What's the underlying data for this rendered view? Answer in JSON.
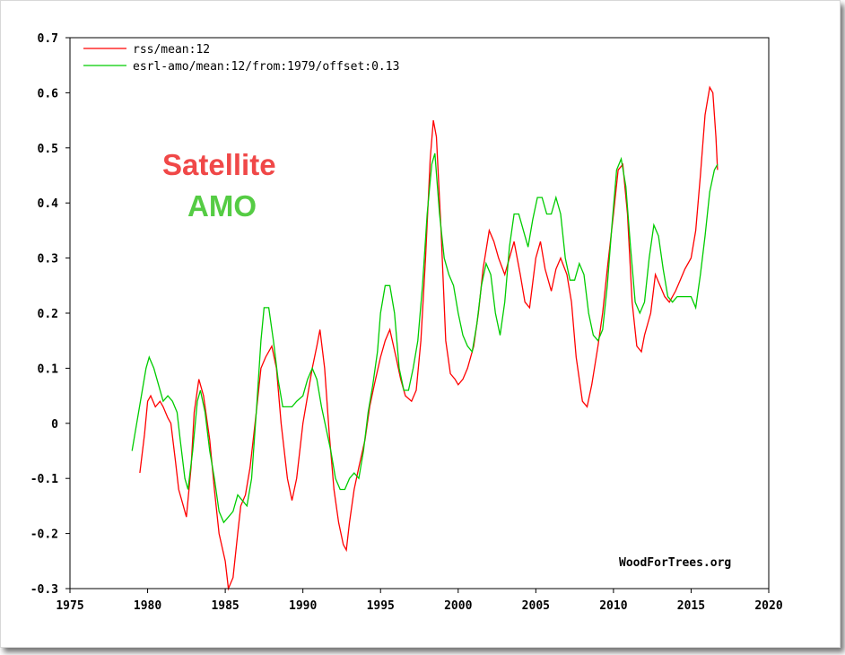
{
  "chart_data": {
    "type": "line",
    "title": "",
    "xlabel": "",
    "ylabel": "",
    "xlim": [
      1975,
      2020
    ],
    "ylim": [
      -0.3,
      0.7
    ],
    "xticks": [
      1975,
      1980,
      1985,
      1990,
      1995,
      2000,
      2005,
      2010,
      2015,
      2020
    ],
    "yticks": [
      -0.3,
      -0.2,
      -0.1,
      0,
      0.1,
      0.2,
      0.3,
      0.4,
      0.5,
      0.6,
      0.7
    ],
    "xtick_labels": [
      "1975",
      "1980",
      "1985",
      "1990",
      "1995",
      "2000",
      "2005",
      "2010",
      "2015",
      "2020"
    ],
    "ytick_labels": [
      "-0.3",
      "-0.2",
      "-0.1",
      "0",
      "0.1",
      "0.2",
      "0.3",
      "0.4",
      "0.5",
      "0.6",
      "0.7"
    ],
    "grid": false,
    "legend_position": "top-left",
    "series": [
      {
        "name": "rss/mean:12",
        "color": "#ff0000",
        "points": [
          [
            1979.5,
            -0.09
          ],
          [
            1979.8,
            -0.02
          ],
          [
            1980.0,
            0.04
          ],
          [
            1980.2,
            0.05
          ],
          [
            1980.5,
            0.03
          ],
          [
            1980.8,
            0.04
          ],
          [
            1981.0,
            0.03
          ],
          [
            1981.3,
            0.01
          ],
          [
            1981.5,
            0.0
          ],
          [
            1981.8,
            -0.07
          ],
          [
            1982.0,
            -0.12
          ],
          [
            1982.3,
            -0.15
          ],
          [
            1982.5,
            -0.17
          ],
          [
            1982.8,
            -0.08
          ],
          [
            1983.0,
            0.02
          ],
          [
            1983.3,
            0.08
          ],
          [
            1983.6,
            0.05
          ],
          [
            1984.0,
            -0.03
          ],
          [
            1984.3,
            -0.12
          ],
          [
            1984.6,
            -0.2
          ],
          [
            1985.0,
            -0.25
          ],
          [
            1985.2,
            -0.3
          ],
          [
            1985.5,
            -0.28
          ],
          [
            1985.8,
            -0.2
          ],
          [
            1986.0,
            -0.15
          ],
          [
            1986.3,
            -0.13
          ],
          [
            1986.6,
            -0.08
          ],
          [
            1987.0,
            0.02
          ],
          [
            1987.3,
            0.1
          ],
          [
            1987.6,
            0.12
          ],
          [
            1988.0,
            0.14
          ],
          [
            1988.3,
            0.1
          ],
          [
            1988.6,
            0.0
          ],
          [
            1989.0,
            -0.1
          ],
          [
            1989.3,
            -0.14
          ],
          [
            1989.6,
            -0.1
          ],
          [
            1990.0,
            0.0
          ],
          [
            1990.3,
            0.05
          ],
          [
            1990.6,
            0.1
          ],
          [
            1990.9,
            0.14
          ],
          [
            1991.1,
            0.17
          ],
          [
            1991.4,
            0.1
          ],
          [
            1991.7,
            -0.02
          ],
          [
            1992.0,
            -0.12
          ],
          [
            1992.3,
            -0.18
          ],
          [
            1992.6,
            -0.22
          ],
          [
            1992.8,
            -0.23
          ],
          [
            1993.0,
            -0.18
          ],
          [
            1993.3,
            -0.12
          ],
          [
            1993.6,
            -0.08
          ],
          [
            1994.0,
            -0.03
          ],
          [
            1994.3,
            0.03
          ],
          [
            1994.6,
            0.07
          ],
          [
            1995.0,
            0.12
          ],
          [
            1995.3,
            0.15
          ],
          [
            1995.6,
            0.17
          ],
          [
            1996.0,
            0.12
          ],
          [
            1996.3,
            0.08
          ],
          [
            1996.6,
            0.05
          ],
          [
            1997.0,
            0.04
          ],
          [
            1997.3,
            0.06
          ],
          [
            1997.6,
            0.15
          ],
          [
            1997.9,
            0.3
          ],
          [
            1998.2,
            0.48
          ],
          [
            1998.4,
            0.55
          ],
          [
            1998.6,
            0.52
          ],
          [
            1998.9,
            0.35
          ],
          [
            1999.2,
            0.15
          ],
          [
            1999.5,
            0.09
          ],
          [
            1999.8,
            0.08
          ],
          [
            2000.0,
            0.07
          ],
          [
            2000.3,
            0.08
          ],
          [
            2000.6,
            0.1
          ],
          [
            2001.0,
            0.14
          ],
          [
            2001.3,
            0.2
          ],
          [
            2001.6,
            0.28
          ],
          [
            2002.0,
            0.35
          ],
          [
            2002.3,
            0.33
          ],
          [
            2002.6,
            0.3
          ],
          [
            2003.0,
            0.27
          ],
          [
            2003.3,
            0.3
          ],
          [
            2003.6,
            0.33
          ],
          [
            2004.0,
            0.27
          ],
          [
            2004.3,
            0.22
          ],
          [
            2004.6,
            0.21
          ],
          [
            2005.0,
            0.3
          ],
          [
            2005.3,
            0.33
          ],
          [
            2005.6,
            0.28
          ],
          [
            2006.0,
            0.24
          ],
          [
            2006.3,
            0.28
          ],
          [
            2006.6,
            0.3
          ],
          [
            2007.0,
            0.27
          ],
          [
            2007.3,
            0.22
          ],
          [
            2007.6,
            0.12
          ],
          [
            2008.0,
            0.04
          ],
          [
            2008.3,
            0.03
          ],
          [
            2008.6,
            0.07
          ],
          [
            2009.0,
            0.14
          ],
          [
            2009.3,
            0.2
          ],
          [
            2009.6,
            0.28
          ],
          [
            2010.0,
            0.38
          ],
          [
            2010.3,
            0.46
          ],
          [
            2010.6,
            0.47
          ],
          [
            2010.9,
            0.38
          ],
          [
            2011.2,
            0.22
          ],
          [
            2011.5,
            0.14
          ],
          [
            2011.8,
            0.13
          ],
          [
            2012.0,
            0.16
          ],
          [
            2012.4,
            0.2
          ],
          [
            2012.7,
            0.27
          ],
          [
            2013.0,
            0.25
          ],
          [
            2013.3,
            0.23
          ],
          [
            2013.6,
            0.22
          ],
          [
            2014.0,
            0.24
          ],
          [
            2014.3,
            0.26
          ],
          [
            2014.6,
            0.28
          ],
          [
            2015.0,
            0.3
          ],
          [
            2015.3,
            0.35
          ],
          [
            2015.6,
            0.45
          ],
          [
            2015.9,
            0.56
          ],
          [
            2016.2,
            0.61
          ],
          [
            2016.4,
            0.6
          ],
          [
            2016.6,
            0.52
          ],
          [
            2016.7,
            0.46
          ]
        ]
      },
      {
        "name": "esrl-amo/mean:12/from:1979/offset:0.13",
        "color": "#00cc00",
        "points": [
          [
            1979.0,
            -0.05
          ],
          [
            1979.3,
            0.0
          ],
          [
            1979.6,
            0.05
          ],
          [
            1979.9,
            0.1
          ],
          [
            1980.1,
            0.12
          ],
          [
            1980.4,
            0.1
          ],
          [
            1980.7,
            0.07
          ],
          [
            1981.0,
            0.04
          ],
          [
            1981.3,
            0.05
          ],
          [
            1981.6,
            0.04
          ],
          [
            1981.9,
            0.02
          ],
          [
            1982.1,
            -0.03
          ],
          [
            1982.4,
            -0.1
          ],
          [
            1982.6,
            -0.12
          ],
          [
            1982.9,
            -0.05
          ],
          [
            1983.2,
            0.04
          ],
          [
            1983.4,
            0.06
          ],
          [
            1983.7,
            0.02
          ],
          [
            1984.0,
            -0.05
          ],
          [
            1984.3,
            -0.1
          ],
          [
            1984.6,
            -0.16
          ],
          [
            1984.9,
            -0.18
          ],
          [
            1985.2,
            -0.17
          ],
          [
            1985.5,
            -0.16
          ],
          [
            1985.8,
            -0.13
          ],
          [
            1986.1,
            -0.14
          ],
          [
            1986.4,
            -0.15
          ],
          [
            1986.7,
            -0.1
          ],
          [
            1987.0,
            0.02
          ],
          [
            1987.3,
            0.15
          ],
          [
            1987.5,
            0.21
          ],
          [
            1987.8,
            0.21
          ],
          [
            1988.1,
            0.15
          ],
          [
            1988.4,
            0.08
          ],
          [
            1988.7,
            0.03
          ],
          [
            1989.0,
            0.03
          ],
          [
            1989.3,
            0.03
          ],
          [
            1989.6,
            0.04
          ],
          [
            1990.0,
            0.05
          ],
          [
            1990.3,
            0.08
          ],
          [
            1990.6,
            0.1
          ],
          [
            1990.9,
            0.08
          ],
          [
            1991.2,
            0.03
          ],
          [
            1991.5,
            -0.01
          ],
          [
            1991.8,
            -0.05
          ],
          [
            1992.1,
            -0.1
          ],
          [
            1992.4,
            -0.12
          ],
          [
            1992.7,
            -0.12
          ],
          [
            1993.0,
            -0.1
          ],
          [
            1993.3,
            -0.09
          ],
          [
            1993.6,
            -0.1
          ],
          [
            1993.9,
            -0.05
          ],
          [
            1994.2,
            0.02
          ],
          [
            1994.5,
            0.07
          ],
          [
            1994.8,
            0.13
          ],
          [
            1995.0,
            0.2
          ],
          [
            1995.3,
            0.25
          ],
          [
            1995.6,
            0.25
          ],
          [
            1995.9,
            0.2
          ],
          [
            1996.2,
            0.1
          ],
          [
            1996.5,
            0.06
          ],
          [
            1996.8,
            0.06
          ],
          [
            1997.1,
            0.1
          ],
          [
            1997.4,
            0.15
          ],
          [
            1997.7,
            0.25
          ],
          [
            1998.0,
            0.38
          ],
          [
            1998.3,
            0.47
          ],
          [
            1998.5,
            0.49
          ],
          [
            1998.8,
            0.38
          ],
          [
            1999.1,
            0.3
          ],
          [
            1999.4,
            0.27
          ],
          [
            1999.7,
            0.25
          ],
          [
            2000.0,
            0.2
          ],
          [
            2000.3,
            0.16
          ],
          [
            2000.6,
            0.14
          ],
          [
            2000.9,
            0.13
          ],
          [
            2001.2,
            0.18
          ],
          [
            2001.5,
            0.25
          ],
          [
            2001.8,
            0.29
          ],
          [
            2002.1,
            0.27
          ],
          [
            2002.4,
            0.2
          ],
          [
            2002.7,
            0.16
          ],
          [
            2003.0,
            0.22
          ],
          [
            2003.3,
            0.32
          ],
          [
            2003.6,
            0.38
          ],
          [
            2003.9,
            0.38
          ],
          [
            2004.2,
            0.35
          ],
          [
            2004.5,
            0.32
          ],
          [
            2004.8,
            0.37
          ],
          [
            2005.1,
            0.41
          ],
          [
            2005.4,
            0.41
          ],
          [
            2005.7,
            0.38
          ],
          [
            2006.0,
            0.38
          ],
          [
            2006.3,
            0.41
          ],
          [
            2006.6,
            0.38
          ],
          [
            2006.9,
            0.3
          ],
          [
            2007.2,
            0.26
          ],
          [
            2007.5,
            0.26
          ],
          [
            2007.8,
            0.29
          ],
          [
            2008.1,
            0.27
          ],
          [
            2008.4,
            0.2
          ],
          [
            2008.7,
            0.16
          ],
          [
            2009.0,
            0.15
          ],
          [
            2009.3,
            0.17
          ],
          [
            2009.6,
            0.25
          ],
          [
            2009.9,
            0.36
          ],
          [
            2010.2,
            0.46
          ],
          [
            2010.5,
            0.48
          ],
          [
            2010.8,
            0.43
          ],
          [
            2011.1,
            0.32
          ],
          [
            2011.4,
            0.22
          ],
          [
            2011.7,
            0.2
          ],
          [
            2012.0,
            0.22
          ],
          [
            2012.3,
            0.3
          ],
          [
            2012.6,
            0.36
          ],
          [
            2012.9,
            0.34
          ],
          [
            2013.2,
            0.28
          ],
          [
            2013.5,
            0.23
          ],
          [
            2013.8,
            0.22
          ],
          [
            2014.1,
            0.23
          ],
          [
            2014.4,
            0.23
          ],
          [
            2014.7,
            0.23
          ],
          [
            2015.0,
            0.23
          ],
          [
            2015.3,
            0.21
          ],
          [
            2015.6,
            0.27
          ],
          [
            2015.9,
            0.34
          ],
          [
            2016.2,
            0.42
          ],
          [
            2016.5,
            0.46
          ],
          [
            2016.7,
            0.47
          ]
        ]
      }
    ],
    "annotations": [
      {
        "text": "Satellite",
        "color": "#f04848"
      },
      {
        "text": "AMO",
        "color": "#55cc44"
      }
    ],
    "watermark": "WoodForTrees.org"
  }
}
